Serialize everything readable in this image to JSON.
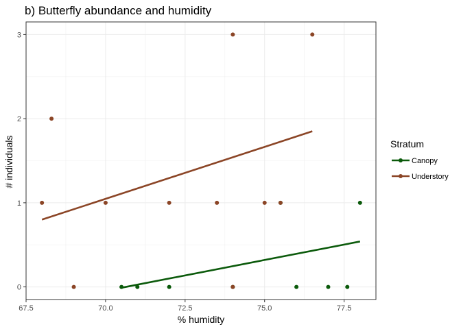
{
  "chart_data": {
    "type": "scatter",
    "title": "b) Butterfly abundance and humidity",
    "xlabel": "% humidity",
    "ylabel": "# individuals",
    "xlim": [
      67.5,
      78.5
    ],
    "ylim": [
      -0.15,
      3.15
    ],
    "x_ticks": [
      67.5,
      70.0,
      72.5,
      75.0,
      77.5
    ],
    "x_tick_labels": [
      "67.5",
      "70.0",
      "72.5",
      "75.0",
      "77.5"
    ],
    "y_ticks": [
      0,
      1,
      2,
      3
    ],
    "y_tick_labels": [
      "0",
      "1",
      "2",
      "3"
    ],
    "grid": true,
    "legend_title": "Stratum",
    "legend_position": "right",
    "series": [
      {
        "name": "Canopy",
        "color": "#0b5a0b",
        "points": [
          {
            "x": 70.5,
            "y": 0
          },
          {
            "x": 71.0,
            "y": 0
          },
          {
            "x": 72.0,
            "y": 0
          },
          {
            "x": 74.0,
            "y": 0
          },
          {
            "x": 75.5,
            "y": 1
          },
          {
            "x": 76.0,
            "y": 0
          },
          {
            "x": 77.0,
            "y": 0
          },
          {
            "x": 77.6,
            "y": 0
          },
          {
            "x": 78.0,
            "y": 1
          }
        ],
        "fit": {
          "x": [
            70.5,
            78.0
          ],
          "y": [
            -0.01,
            0.54
          ]
        }
      },
      {
        "name": "Understory",
        "color": "#8b4526",
        "points": [
          {
            "x": 68.0,
            "y": 1
          },
          {
            "x": 68.3,
            "y": 2
          },
          {
            "x": 69.0,
            "y": 0
          },
          {
            "x": 70.0,
            "y": 1
          },
          {
            "x": 72.0,
            "y": 1
          },
          {
            "x": 73.5,
            "y": 1
          },
          {
            "x": 74.0,
            "y": 3
          },
          {
            "x": 74.0,
            "y": 0
          },
          {
            "x": 75.0,
            "y": 1
          },
          {
            "x": 75.5,
            "y": 1
          },
          {
            "x": 76.5,
            "y": 3
          }
        ],
        "fit": {
          "x": [
            68.0,
            76.5
          ],
          "y": [
            0.8,
            1.85
          ]
        }
      }
    ]
  }
}
